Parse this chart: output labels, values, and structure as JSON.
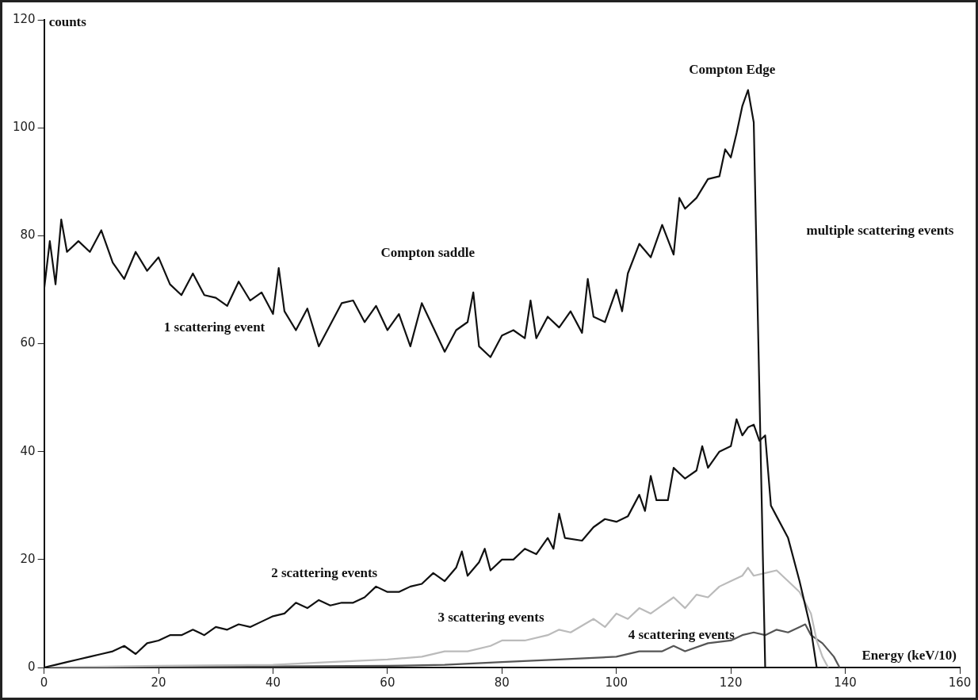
{
  "chart_data": {
    "type": "line",
    "xlabel": "Energy (keV/10)",
    "ylabel": "counts",
    "xlim": [
      0,
      160
    ],
    "xticks": [
      0,
      20,
      40,
      60,
      80,
      100,
      120,
      140,
      160
    ],
    "ylim": [
      0,
      120
    ],
    "yticks": [
      0,
      20,
      40,
      60,
      80,
      100,
      120
    ],
    "grid": false,
    "legend": false,
    "marker": "none",
    "line_style": "solid",
    "series": [
      {
        "name": "1 scattering event",
        "color": "#111111",
        "x": [
          0,
          1,
          2,
          3,
          4,
          6,
          8,
          10,
          12,
          14,
          16,
          18,
          20,
          22,
          24,
          26,
          28,
          30,
          32,
          34,
          36,
          38,
          40,
          41,
          42,
          44,
          46,
          48,
          50,
          52,
          54,
          56,
          58,
          60,
          62,
          64,
          66,
          68,
          70,
          72,
          74,
          75,
          76,
          78,
          80,
          82,
          84,
          85,
          86,
          88,
          90,
          92,
          94,
          95,
          96,
          98,
          100,
          101,
          102,
          104,
          106,
          108,
          110,
          111,
          112,
          114,
          116,
          118,
          119,
          120,
          121,
          122,
          123,
          124,
          126
        ],
        "values": [
          70,
          79,
          71,
          83,
          77,
          79,
          77,
          81,
          75,
          72,
          77,
          73.5,
          76,
          71,
          69,
          73,
          69,
          68.5,
          67,
          71.5,
          68,
          69.5,
          65.5,
          74,
          66,
          62.5,
          66.5,
          59.5,
          63.5,
          67.5,
          68,
          64,
          67,
          62.5,
          65.5,
          59.5,
          67.5,
          63,
          58.5,
          62.5,
          64,
          69.5,
          59.5,
          57.5,
          61.5,
          62.5,
          61,
          68,
          61,
          65,
          63,
          66,
          62,
          72,
          65,
          64,
          70,
          66,
          73,
          78.5,
          76,
          82,
          76.5,
          87,
          85,
          87,
          90.5,
          91,
          96,
          94.5,
          99,
          104,
          107,
          101,
          0
        ]
      },
      {
        "name": "2 scattering events",
        "color": "#111111",
        "x": [
          0,
          2,
          4,
          6,
          8,
          10,
          12,
          14,
          16,
          18,
          20,
          22,
          24,
          26,
          28,
          30,
          32,
          34,
          36,
          38,
          40,
          42,
          44,
          46,
          48,
          50,
          52,
          54,
          56,
          58,
          60,
          62,
          64,
          66,
          68,
          70,
          72,
          73,
          74,
          76,
          77,
          78,
          80,
          82,
          84,
          86,
          88,
          89,
          90,
          91,
          94,
          96,
          98,
          100,
          102,
          104,
          105,
          106,
          107,
          109,
          110,
          112,
          114,
          115,
          116,
          118,
          120,
          121,
          122,
          123,
          124,
          125,
          126,
          127,
          128,
          130,
          132,
          134,
          135
        ],
        "values": [
          0,
          0.5,
          1,
          1.5,
          2,
          2.5,
          3,
          4,
          2.5,
          4.5,
          5,
          6,
          6,
          7,
          6,
          7.5,
          7,
          8,
          7.5,
          8.5,
          9.5,
          10,
          12,
          11,
          12.5,
          11.5,
          12,
          12,
          13,
          15,
          14,
          14,
          15,
          15.5,
          17.5,
          16,
          18.5,
          21.5,
          17,
          19.5,
          22,
          18,
          20,
          20,
          22,
          21,
          24,
          22,
          28.5,
          24,
          23.5,
          26,
          27.5,
          27,
          28,
          32,
          29,
          35.5,
          31,
          31,
          37,
          35,
          36.5,
          41,
          37,
          40,
          41,
          46,
          43,
          44.5,
          45,
          42,
          43,
          30,
          28,
          24,
          16,
          7,
          0
        ]
      },
      {
        "name": "3 scattering events",
        "color": "#bbbbbb",
        "x": [
          0,
          20,
          40,
          50,
          60,
          66,
          70,
          74,
          78,
          80,
          84,
          88,
          90,
          92,
          96,
          98,
          100,
          102,
          104,
          106,
          108,
          110,
          112,
          114,
          116,
          118,
          120,
          122,
          123,
          124,
          126,
          128,
          130,
          132,
          134,
          135,
          136,
          137
        ],
        "values": [
          0,
          0.3,
          0.5,
          1,
          1.5,
          2,
          3,
          3,
          4,
          5,
          5,
          6,
          7,
          6.5,
          9,
          7.5,
          10,
          9,
          11,
          10,
          11.5,
          13,
          11,
          13.5,
          13,
          15,
          16,
          17,
          18.5,
          17,
          17.5,
          18,
          16,
          14,
          10,
          5,
          2,
          0
        ]
      },
      {
        "name": "4 scattering events",
        "color": "#555555",
        "x": [
          0,
          60,
          70,
          80,
          90,
          100,
          104,
          108,
          110,
          112,
          116,
          120,
          122,
          124,
          126,
          128,
          130,
          132,
          133,
          134,
          136,
          138,
          139
        ],
        "values": [
          0,
          0.3,
          0.5,
          1,
          1.5,
          2,
          3,
          3,
          4,
          3,
          4.5,
          5,
          6,
          6.5,
          6,
          7,
          6.5,
          7.5,
          8,
          6,
          4.5,
          2,
          0
        ]
      }
    ],
    "annotations": [
      "Compton Edge",
      "Compton saddle",
      "multiple scattering events"
    ]
  }
}
